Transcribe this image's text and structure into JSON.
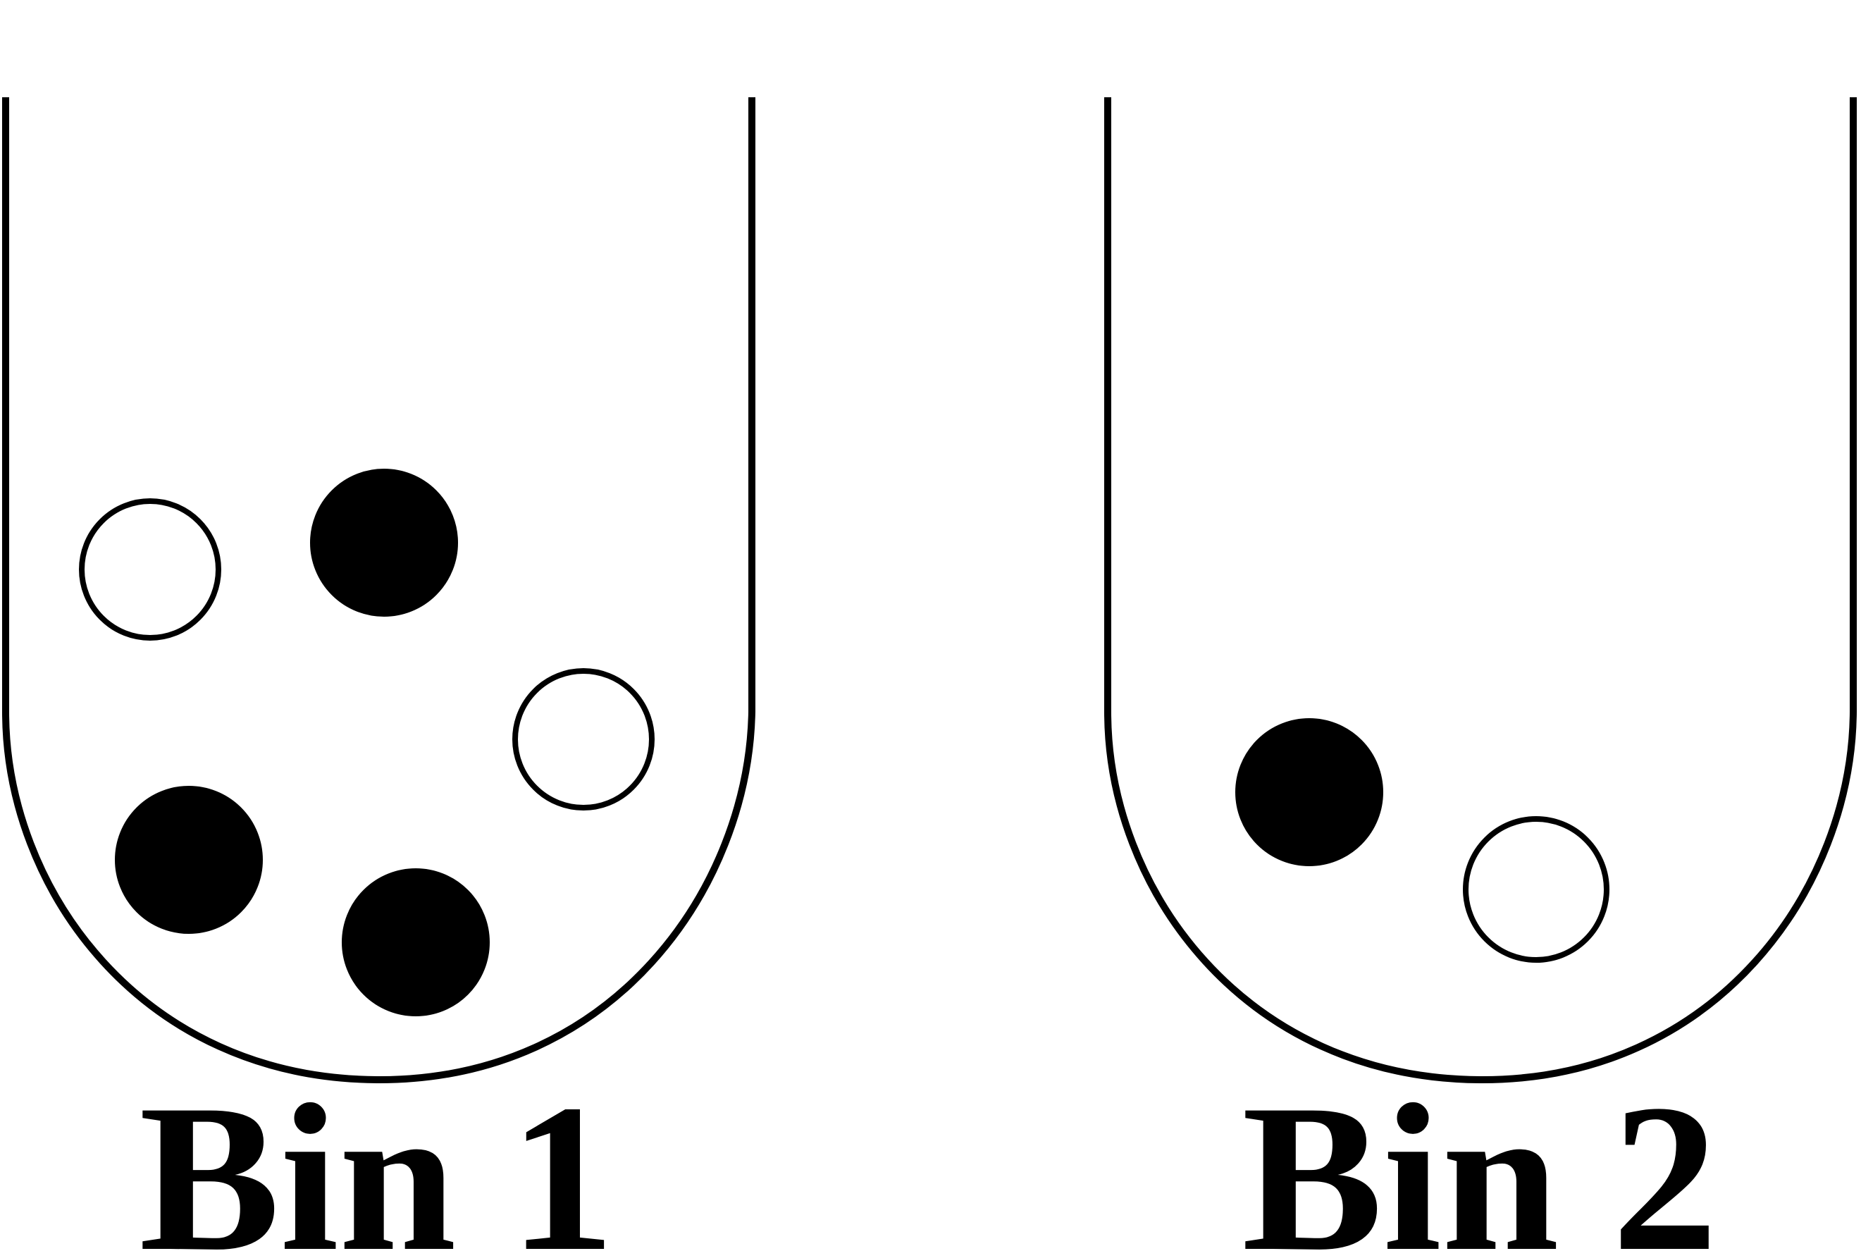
{
  "diagram": {
    "colors": {
      "outline": "#000000",
      "filled_ball": "#000000",
      "hollow_ball_fill": "#ffffff",
      "background": "#ffffff"
    },
    "bins": [
      {
        "label": "Bin 1",
        "balls": [
          "hollow",
          "filled",
          "hollow",
          "filled",
          "filled"
        ]
      },
      {
        "label": "Bin 2",
        "balls": [
          "filled",
          "hollow"
        ]
      }
    ]
  }
}
